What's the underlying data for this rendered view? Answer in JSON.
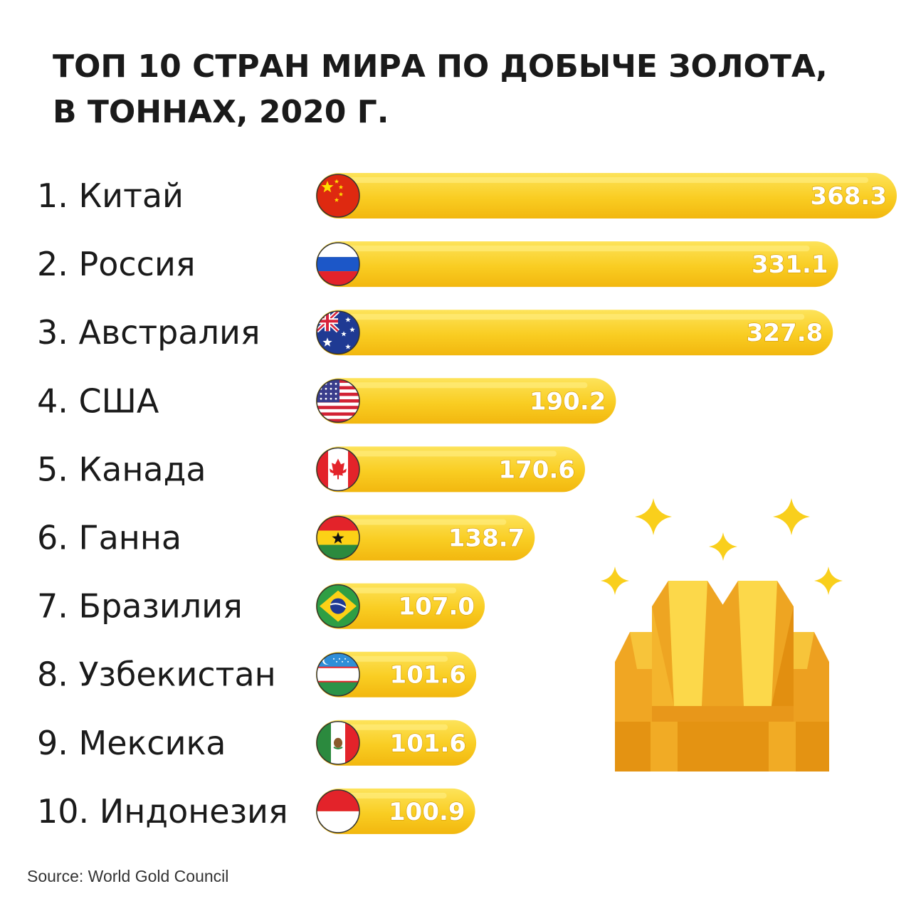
{
  "chart_data": {
    "type": "bar",
    "orientation": "horizontal",
    "title_lines": [
      "ТОП 10 СТРАН МИРА ПО ДОБЫЧЕ ЗОЛОТА,",
      "В ТОННАХ, 2020 Г."
    ],
    "categories": [
      "1. Китай",
      "2. Россия",
      "3. Австралия",
      "4. США",
      "5. Канада",
      "6. Ганна",
      "7. Бразилия",
      "8. Узбекистан",
      "9. Мексика",
      "10. Индонезия"
    ],
    "values": [
      368.3,
      331.1,
      327.8,
      190.2,
      170.6,
      138.7,
      107.0,
      101.6,
      101.6,
      100.9
    ],
    "value_labels": [
      "368.3",
      "331.1",
      "327.8",
      "190.2",
      "170.6",
      "138.7",
      "107.0",
      "101.6",
      "101.6",
      "100.9"
    ],
    "flags": [
      "china-flag-icon",
      "russia-flag-icon",
      "australia-flag-icon",
      "usa-flag-icon",
      "canada-flag-icon",
      "ghana-flag-icon",
      "brazil-flag-icon",
      "uzbekistan-flag-icon",
      "mexico-flag-icon",
      "indonesia-flag-icon"
    ],
    "xlabel": "",
    "ylabel": "",
    "grid": false,
    "legend": "none",
    "bar_color": "#f7c21a",
    "bar_highlight": "#fde35a"
  },
  "source": "Source: World Gold Council",
  "decoration": {
    "icon": "gold-bars-icon",
    "sparkle_color": "#f9cf1c"
  }
}
